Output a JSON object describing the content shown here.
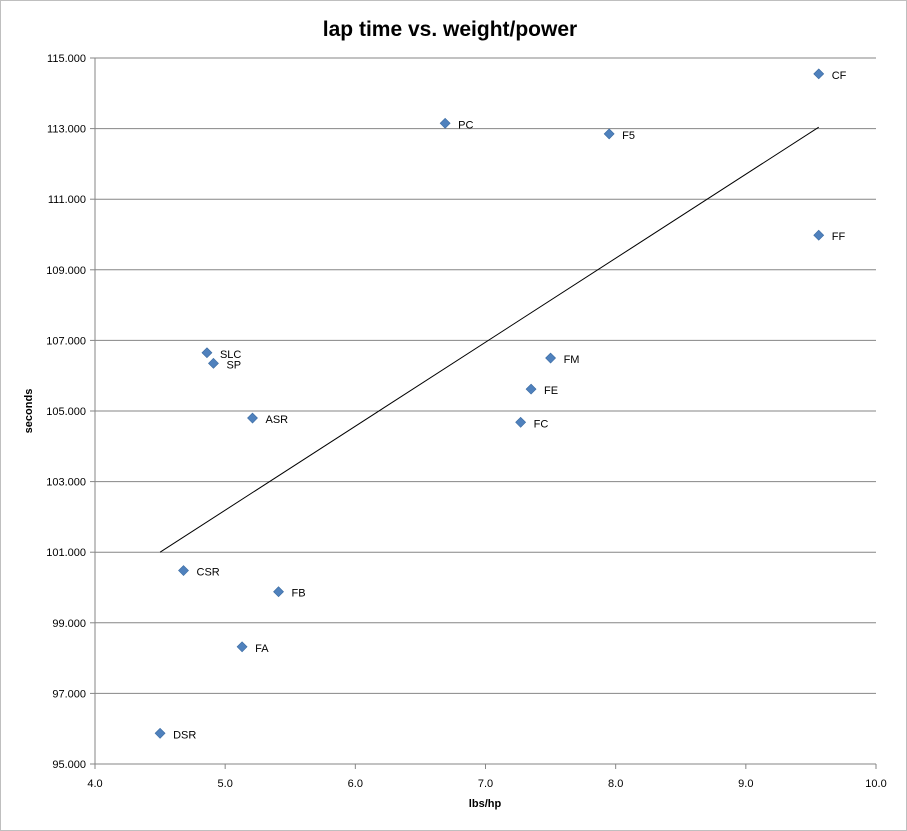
{
  "chart_data": {
    "type": "scatter",
    "title": "lap time vs. weight/power",
    "xlabel": "lbs/hp",
    "ylabel": "seconds",
    "xlim": [
      4.0,
      10.0
    ],
    "ylim": [
      95.0,
      115.0
    ],
    "x_ticks": [
      "4.0",
      "5.0",
      "6.0",
      "7.0",
      "8.0",
      "9.0",
      "10.0"
    ],
    "y_ticks": [
      "95.000",
      "97.000",
      "99.000",
      "101.000",
      "103.000",
      "105.000",
      "107.000",
      "109.000",
      "111.000",
      "113.000",
      "115.000"
    ],
    "grid": "horizontal",
    "legend": "none",
    "marker": "diamond",
    "marker_color": "#4f81bd",
    "trendline": {
      "type": "linear",
      "x": [
        4.5,
        9.56
      ],
      "y": [
        101.0,
        113.04
      ],
      "color": "#000000"
    },
    "points": [
      {
        "label": "CF",
        "x": 9.56,
        "y": 114.55
      },
      {
        "label": "PC",
        "x": 6.69,
        "y": 113.15
      },
      {
        "label": "F5",
        "x": 7.95,
        "y": 112.85
      },
      {
        "label": "FF",
        "x": 9.56,
        "y": 109.98
      },
      {
        "label": "SLC",
        "x": 4.86,
        "y": 106.65
      },
      {
        "label": "SP",
        "x": 4.91,
        "y": 106.35
      },
      {
        "label": "FM",
        "x": 7.5,
        "y": 106.5
      },
      {
        "label": "FE",
        "x": 7.35,
        "y": 105.62
      },
      {
        "label": "ASR",
        "x": 5.21,
        "y": 104.8
      },
      {
        "label": "FC",
        "x": 7.27,
        "y": 104.68
      },
      {
        "label": "CSR",
        "x": 4.68,
        "y": 100.48
      },
      {
        "label": "FB",
        "x": 5.41,
        "y": 99.88
      },
      {
        "label": "FA",
        "x": 5.13,
        "y": 98.32
      },
      {
        "label": "DSR",
        "x": 4.5,
        "y": 95.87
      }
    ]
  }
}
